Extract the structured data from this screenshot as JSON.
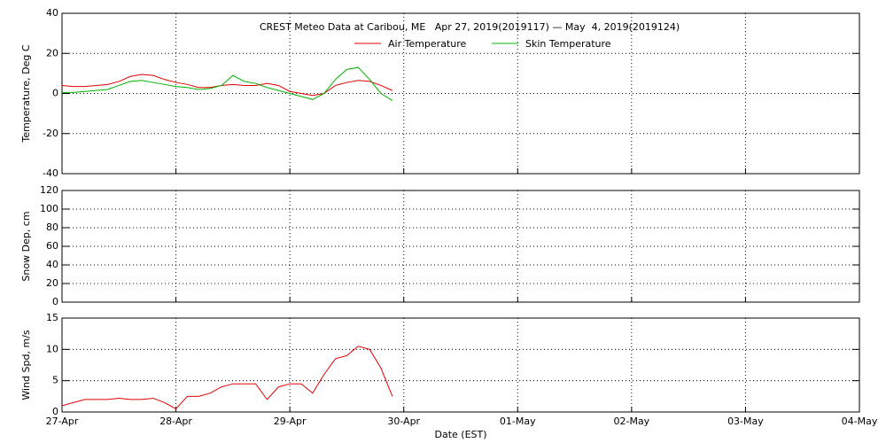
{
  "chart_data": [
    {
      "type": "line",
      "title": "CREST Meteo Data at Caribou, ME   Apr 27, 2019(2019117) — May  4, 2019(2019124)",
      "y_label": "Temperature, Deg C",
      "x": [
        0,
        0.1,
        0.2,
        0.3,
        0.4,
        0.5,
        0.6,
        0.7,
        0.8,
        0.9,
        1.0,
        1.1,
        1.2,
        1.3,
        1.4,
        1.5,
        1.6,
        1.7,
        1.8,
        1.9,
        2.0,
        2.1,
        2.2,
        2.3,
        2.4,
        2.5,
        2.6,
        2.7,
        2.8,
        2.9
      ],
      "series": [
        {
          "name": "Air Temperature",
          "color": "#e00000",
          "values": [
            4,
            3.5,
            3.5,
            4,
            4.5,
            6,
            8.5,
            9.5,
            9,
            7,
            5.5,
            4.5,
            3,
            3,
            4,
            4.5,
            4,
            4,
            5,
            4,
            1,
            0,
            -1,
            0,
            4,
            5.5,
            6.5,
            6,
            4,
            1.5
          ]
        },
        {
          "name": "Skin Temperature",
          "color": "#00b000",
          "values": [
            0.5,
            0.5,
            1,
            1.5,
            2,
            4,
            6,
            6.5,
            5.5,
            4.5,
            3.5,
            3,
            2,
            2.5,
            4,
            9,
            6,
            5,
            3,
            1.5,
            0,
            -1.5,
            -3,
            0,
            7,
            12,
            13,
            7,
            0,
            -3.5
          ]
        }
      ],
      "ylim": [
        -40,
        40
      ],
      "yticks": [
        -40,
        -20,
        0,
        20,
        40
      ],
      "grid": true
    },
    {
      "type": "line",
      "y_label": "Snow Dep, cm",
      "ylim": [
        0,
        120
      ],
      "yticks": [
        0,
        20,
        40,
        60,
        80,
        100,
        120
      ],
      "grid": true
    },
    {
      "type": "line",
      "y_label": "Wind Spd, m/s",
      "x_label": "Date (EST)",
      "x": [
        0,
        0.1,
        0.2,
        0.3,
        0.4,
        0.5,
        0.6,
        0.7,
        0.8,
        0.9,
        1.0,
        1.1,
        1.2,
        1.3,
        1.4,
        1.5,
        1.6,
        1.7,
        1.8,
        1.9,
        2.0,
        2.1,
        2.2,
        2.3,
        2.4,
        2.5,
        2.6,
        2.7,
        2.8,
        2.9
      ],
      "series": [
        {
          "color": "#e00000",
          "values": [
            1,
            1.5,
            2,
            2,
            2,
            2.2,
            2,
            2,
            2.2,
            1.5,
            0.5,
            2.5,
            2.5,
            3,
            4,
            4.5,
            4.5,
            4.5,
            2,
            4,
            4.5,
            4.5,
            3,
            6,
            8.5,
            9,
            10.5,
            10,
            7,
            2.5
          ]
        }
      ],
      "xlim": [
        0,
        7
      ],
      "xticks": [
        {
          "value": 0,
          "label": "27-Apr"
        },
        {
          "value": 1,
          "label": "28-Apr"
        },
        {
          "value": 2,
          "label": "29-Apr"
        },
        {
          "value": 3,
          "label": "30-Apr"
        },
        {
          "value": 4,
          "label": "01-May"
        },
        {
          "value": 5,
          "label": "02-May"
        },
        {
          "value": 6,
          "label": "03-May"
        },
        {
          "value": 7,
          "label": "04-May"
        }
      ],
      "ylim": [
        0,
        15
      ],
      "yticks": [
        0,
        5,
        10,
        15
      ],
      "grid": true
    }
  ]
}
